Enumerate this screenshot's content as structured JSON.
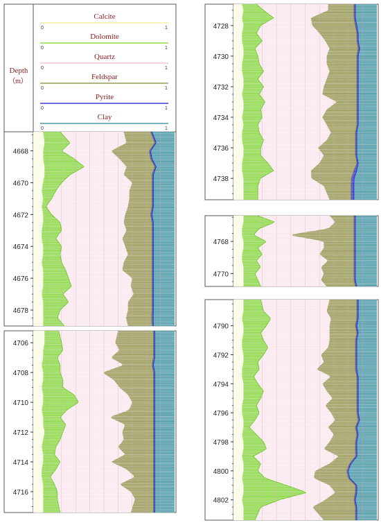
{
  "legend": {
    "depth_label": "Depth",
    "depth_unit": "（m）",
    "tracks": [
      {
        "name": "Calcite",
        "min": "0",
        "max": "1",
        "color": "#f2f2a0"
      },
      {
        "name": "Dolomite",
        "min": "0",
        "max": "1",
        "color": "#8ed84a"
      },
      {
        "name": "Quartz",
        "min": "0",
        "max": "1",
        "color": "#f2c4d2"
      },
      {
        "name": "Feldspar",
        "min": "0",
        "max": "1",
        "color": "#9a9a5a"
      },
      {
        "name": "Pyrite",
        "min": "0",
        "max": "1",
        "color": "#3a3ad8"
      },
      {
        "name": "Clay",
        "min": "0",
        "max": "1",
        "color": "#4e9aa8"
      }
    ]
  },
  "colors": {
    "label_red": "#8b1a1a",
    "calcite_bg": "#fbfbe6",
    "quartz_bg": "#fbe8ef",
    "dolomite": "#8ed84a",
    "feldspar": "#9a9a5a",
    "pyrite": "#3a3ad8",
    "clay": "#4e9aa8",
    "grid": "#d9a7b8"
  },
  "chart_data": [
    {
      "type": "area",
      "title": "",
      "ylabel": "Depth (m)",
      "ylim": [
        4666.8,
        4679.0
      ],
      "yticks": [
        4668,
        4670,
        4672,
        4674,
        4676,
        4678
      ],
      "depth": [
        4666.8,
        4667.5,
        4668.0,
        4668.5,
        4669.0,
        4669.5,
        4670.0,
        4670.5,
        4671.0,
        4671.5,
        4672.0,
        4672.5,
        4673.0,
        4673.5,
        4674.0,
        4674.5,
        4675.0,
        4675.5,
        4676.0,
        4676.5,
        4677.0,
        4677.5,
        4678.0,
        4678.5,
        4679.0
      ],
      "series": [
        {
          "name": "Calcite",
          "values": [
            0.07,
            0.08,
            0.07,
            0.07,
            0.08,
            0.08,
            0.07,
            0.06,
            0.07,
            0.06,
            0.07,
            0.07,
            0.06,
            0.06,
            0.07,
            0.07,
            0.06,
            0.07,
            0.07,
            0.07,
            0.06,
            0.07,
            0.07,
            0.07,
            0.07
          ]
        },
        {
          "name": "Dolomite",
          "values": [
            0.12,
            0.18,
            0.13,
            0.22,
            0.28,
            0.18,
            0.13,
            0.1,
            0.06,
            0.03,
            0.06,
            0.12,
            0.14,
            0.1,
            0.13,
            0.12,
            0.14,
            0.16,
            0.18,
            0.2,
            0.15,
            0.18,
            0.12,
            0.1,
            0.15
          ]
        },
        {
          "name": "Quartz",
          "values": [
            0.45,
            0.4,
            0.35,
            0.32,
            0.3,
            0.38,
            0.5,
            0.52,
            0.55,
            0.58,
            0.52,
            0.45,
            0.46,
            0.47,
            0.45,
            0.48,
            0.44,
            0.4,
            0.45,
            0.42,
            0.5,
            0.42,
            0.48,
            0.48,
            0.45
          ]
        },
        {
          "name": "Feldspar",
          "values": [
            0.19,
            0.2,
            0.27,
            0.22,
            0.2,
            0.2,
            0.14,
            0.16,
            0.16,
            0.17,
            0.18,
            0.2,
            0.18,
            0.21,
            0.19,
            0.17,
            0.2,
            0.21,
            0.14,
            0.15,
            0.13,
            0.17,
            0.17,
            0.18,
            0.17
          ]
        },
        {
          "name": "Pyrite",
          "values": [
            0.01,
            0.01,
            0.01,
            0.01,
            0.01,
            0.01,
            0.01,
            0.01,
            0.01,
            0.01,
            0.01,
            0.01,
            0.01,
            0.01,
            0.01,
            0.01,
            0.01,
            0.01,
            0.01,
            0.01,
            0.01,
            0.01,
            0.01,
            0.01,
            0.01
          ]
        },
        {
          "name": "Clay",
          "values": [
            0.16,
            0.13,
            0.17,
            0.16,
            0.13,
            0.15,
            0.15,
            0.15,
            0.15,
            0.15,
            0.16,
            0.15,
            0.15,
            0.15,
            0.15,
            0.15,
            0.15,
            0.15,
            0.15,
            0.15,
            0.15,
            0.15,
            0.15,
            0.15,
            0.15
          ]
        }
      ]
    },
    {
      "type": "area",
      "title": "",
      "ylabel": "Depth (m)",
      "ylim": [
        4705.2,
        4717.4
      ],
      "yticks": [
        4706,
        4708,
        4710,
        4712,
        4714,
        4716
      ],
      "depth": [
        4705.2,
        4706.0,
        4706.5,
        4707.0,
        4707.5,
        4708.0,
        4708.5,
        4709.0,
        4709.5,
        4710.0,
        4710.5,
        4711.0,
        4711.5,
        4712.0,
        4712.5,
        4713.0,
        4713.5,
        4714.0,
        4714.5,
        4715.0,
        4715.5,
        4716.0,
        4716.5,
        4717.4
      ],
      "series": [
        {
          "name": "Calcite",
          "values": [
            0.08,
            0.08,
            0.07,
            0.07,
            0.06,
            0.07,
            0.07,
            0.06,
            0.07,
            0.07,
            0.06,
            0.07,
            0.07,
            0.08,
            0.07,
            0.06,
            0.07,
            0.07,
            0.06,
            0.06,
            0.07,
            0.07,
            0.07,
            0.07
          ]
        },
        {
          "name": "Dolomite",
          "values": [
            0.1,
            0.12,
            0.14,
            0.1,
            0.13,
            0.12,
            0.14,
            0.15,
            0.22,
            0.25,
            0.18,
            0.12,
            0.16,
            0.13,
            0.12,
            0.1,
            0.08,
            0.12,
            0.1,
            0.06,
            0.08,
            0.1,
            0.1,
            0.12
          ]
        },
        {
          "name": "Quartz",
          "values": [
            0.42,
            0.38,
            0.4,
            0.38,
            0.45,
            0.3,
            0.36,
            0.4,
            0.38,
            0.38,
            0.44,
            0.35,
            0.42,
            0.42,
            0.45,
            0.44,
            0.5,
            0.36,
            0.5,
            0.6,
            0.46,
            0.52,
            0.55,
            0.5
          ]
        },
        {
          "name": "Feldspar",
          "values": [
            0.25,
            0.27,
            0.24,
            0.3,
            0.2,
            0.36,
            0.28,
            0.24,
            0.18,
            0.15,
            0.17,
            0.31,
            0.2,
            0.22,
            0.21,
            0.25,
            0.2,
            0.3,
            0.19,
            0.13,
            0.24,
            0.16,
            0.13,
            0.16
          ]
        },
        {
          "name": "Pyrite",
          "values": [
            0.01,
            0.01,
            0.01,
            0.01,
            0.01,
            0.01,
            0.01,
            0.01,
            0.01,
            0.01,
            0.01,
            0.01,
            0.01,
            0.01,
            0.01,
            0.01,
            0.01,
            0.01,
            0.01,
            0.01,
            0.01,
            0.01,
            0.01,
            0.01
          ]
        },
        {
          "name": "Clay",
          "values": [
            0.14,
            0.14,
            0.14,
            0.14,
            0.15,
            0.14,
            0.14,
            0.14,
            0.14,
            0.14,
            0.14,
            0.14,
            0.14,
            0.14,
            0.14,
            0.14,
            0.14,
            0.14,
            0.14,
            0.14,
            0.14,
            0.14,
            0.14,
            0.14
          ]
        }
      ]
    },
    {
      "type": "area",
      "title": "",
      "ylabel": "Depth (m)",
      "ylim": [
        4726.6,
        4739.4
      ],
      "yticks": [
        4728,
        4730,
        4732,
        4734,
        4736,
        4738
      ],
      "depth": [
        4726.6,
        4727.0,
        4727.5,
        4728.0,
        4728.5,
        4729.0,
        4729.5,
        4730.0,
        4730.5,
        4731.0,
        4731.5,
        4732.0,
        4732.5,
        4733.0,
        4733.5,
        4734.0,
        4734.5,
        4735.0,
        4735.5,
        4736.0,
        4736.5,
        4737.0,
        4737.5,
        4738.0,
        4738.5,
        4739.4
      ],
      "series": [
        {
          "name": "Calcite",
          "values": [
            0.06,
            0.07,
            0.06,
            0.07,
            0.06,
            0.06,
            0.07,
            0.07,
            0.06,
            0.06,
            0.07,
            0.07,
            0.06,
            0.07,
            0.07,
            0.06,
            0.07,
            0.06,
            0.06,
            0.07,
            0.07,
            0.06,
            0.06,
            0.07,
            0.07,
            0.07
          ]
        },
        {
          "name": "Dolomite",
          "values": [
            0.1,
            0.14,
            0.22,
            0.12,
            0.1,
            0.14,
            0.08,
            0.1,
            0.12,
            0.15,
            0.1,
            0.14,
            0.12,
            0.15,
            0.12,
            0.14,
            0.1,
            0.12,
            0.15,
            0.12,
            0.12,
            0.18,
            0.22,
            0.12,
            0.1,
            0.1
          ]
        },
        {
          "name": "Quartz",
          "values": [
            0.5,
            0.45,
            0.26,
            0.36,
            0.44,
            0.44,
            0.52,
            0.48,
            0.47,
            0.46,
            0.48,
            0.42,
            0.44,
            0.5,
            0.46,
            0.42,
            0.48,
            0.5,
            0.44,
            0.4,
            0.44,
            0.36,
            0.26,
            0.36,
            0.46,
            0.5
          ]
        },
        {
          "name": "Feldspar",
          "values": [
            0.18,
            0.18,
            0.3,
            0.3,
            0.26,
            0.22,
            0.2,
            0.21,
            0.21,
            0.19,
            0.21,
            0.23,
            0.24,
            0.14,
            0.21,
            0.24,
            0.21,
            0.17,
            0.2,
            0.26,
            0.22,
            0.26,
            0.3,
            0.28,
            0.19,
            0.15
          ]
        },
        {
          "name": "Pyrite",
          "values": [
            0.01,
            0.01,
            0.01,
            0.01,
            0.01,
            0.01,
            0.01,
            0.01,
            0.01,
            0.01,
            0.01,
            0.01,
            0.01,
            0.01,
            0.01,
            0.01,
            0.01,
            0.01,
            0.01,
            0.01,
            0.01,
            0.01,
            0.02,
            0.02,
            0.02,
            0.02
          ]
        },
        {
          "name": "Clay",
          "values": [
            0.15,
            0.15,
            0.15,
            0.14,
            0.13,
            0.13,
            0.12,
            0.13,
            0.13,
            0.13,
            0.13,
            0.13,
            0.13,
            0.13,
            0.13,
            0.13,
            0.13,
            0.14,
            0.14,
            0.14,
            0.14,
            0.13,
            0.14,
            0.16,
            0.16,
            0.16
          ]
        }
      ]
    },
    {
      "type": "area",
      "title": "",
      "ylabel": "Depth (m)",
      "ylim": [
        4766.4,
        4770.8
      ],
      "yticks": [
        4768,
        4770
      ],
      "depth": [
        4766.4,
        4766.8,
        4767.2,
        4767.6,
        4768.0,
        4768.4,
        4768.8,
        4769.2,
        4769.6,
        4770.0,
        4770.4,
        4770.8
      ],
      "series": [
        {
          "name": "Calcite",
          "values": [
            0.07,
            0.07,
            0.06,
            0.06,
            0.07,
            0.07,
            0.06,
            0.06,
            0.07,
            0.07,
            0.07,
            0.07
          ]
        },
        {
          "name": "Dolomite",
          "values": [
            0.1,
            0.22,
            0.12,
            0.08,
            0.16,
            0.1,
            0.14,
            0.1,
            0.12,
            0.08,
            0.1,
            0.12
          ]
        },
        {
          "name": "Quartz",
          "values": [
            0.5,
            0.42,
            0.48,
            0.24,
            0.4,
            0.46,
            0.4,
            0.5,
            0.42,
            0.48,
            0.44,
            0.46
          ]
        },
        {
          "name": "Feldspar",
          "values": [
            0.17,
            0.13,
            0.18,
            0.46,
            0.21,
            0.21,
            0.24,
            0.18,
            0.23,
            0.21,
            0.23,
            0.2
          ]
        },
        {
          "name": "Pyrite",
          "values": [
            0.01,
            0.01,
            0.01,
            0.01,
            0.01,
            0.01,
            0.01,
            0.01,
            0.01,
            0.01,
            0.01,
            0.01
          ]
        },
        {
          "name": "Clay",
          "values": [
            0.15,
            0.15,
            0.15,
            0.15,
            0.15,
            0.15,
            0.15,
            0.15,
            0.15,
            0.15,
            0.15,
            0.14
          ]
        }
      ]
    },
    {
      "type": "area",
      "title": "",
      "ylabel": "Depth (m)",
      "ylim": [
        4788.2,
        4803.4
      ],
      "yticks": [
        4790,
        4792,
        4794,
        4796,
        4798,
        4800,
        4802
      ],
      "depth": [
        4788.2,
        4789.0,
        4789.5,
        4790.0,
        4790.5,
        4791.0,
        4791.5,
        4792.0,
        4792.5,
        4793.0,
        4793.5,
        4794.0,
        4794.5,
        4795.0,
        4795.5,
        4796.0,
        4796.5,
        4797.0,
        4797.5,
        4798.0,
        4798.5,
        4799.0,
        4799.5,
        4800.0,
        4800.5,
        4801.0,
        4801.5,
        4802.0,
        4802.5,
        4803.4
      ],
      "series": [
        {
          "name": "Calcite",
          "values": [
            0.07,
            0.07,
            0.06,
            0.07,
            0.07,
            0.06,
            0.06,
            0.07,
            0.07,
            0.06,
            0.06,
            0.07,
            0.07,
            0.07,
            0.06,
            0.06,
            0.07,
            0.07,
            0.06,
            0.07,
            0.07,
            0.06,
            0.07,
            0.07,
            0.06,
            0.07,
            0.07,
            0.06,
            0.07,
            0.07
          ]
        },
        {
          "name": "Dolomite",
          "values": [
            0.12,
            0.14,
            0.2,
            0.16,
            0.12,
            0.15,
            0.18,
            0.14,
            0.1,
            0.12,
            0.08,
            0.1,
            0.14,
            0.12,
            0.1,
            0.12,
            0.08,
            0.04,
            0.1,
            0.14,
            0.16,
            0.08,
            0.12,
            0.1,
            0.16,
            0.3,
            0.44,
            0.26,
            0.12,
            0.08
          ]
        },
        {
          "name": "Quartz",
          "values": [
            0.48,
            0.44,
            0.42,
            0.44,
            0.48,
            0.46,
            0.42,
            0.4,
            0.46,
            0.4,
            0.54,
            0.45,
            0.44,
            0.5,
            0.48,
            0.5,
            0.56,
            0.55,
            0.54,
            0.46,
            0.4,
            0.6,
            0.48,
            0.4,
            0.34,
            0.3,
            0.2,
            0.32,
            0.36,
            0.48
          ]
        },
        {
          "name": "Feldspar",
          "values": [
            0.19,
            0.21,
            0.18,
            0.18,
            0.19,
            0.18,
            0.19,
            0.24,
            0.22,
            0.27,
            0.18,
            0.24,
            0.21,
            0.17,
            0.22,
            0.18,
            0.16,
            0.19,
            0.16,
            0.18,
            0.22,
            0.12,
            0.14,
            0.22,
            0.24,
            0.18,
            0.14,
            0.2,
            0.3,
            0.22
          ]
        },
        {
          "name": "Pyrite",
          "values": [
            0.01,
            0.01,
            0.01,
            0.01,
            0.01,
            0.01,
            0.01,
            0.01,
            0.01,
            0.01,
            0.01,
            0.01,
            0.01,
            0.01,
            0.01,
            0.01,
            0.01,
            0.01,
            0.01,
            0.01,
            0.01,
            0.01,
            0.01,
            0.01,
            0.01,
            0.01,
            0.01,
            0.01,
            0.01,
            0.01
          ]
        },
        {
          "name": "Clay",
          "values": [
            0.13,
            0.13,
            0.13,
            0.14,
            0.13,
            0.14,
            0.14,
            0.14,
            0.14,
            0.14,
            0.13,
            0.13,
            0.13,
            0.13,
            0.13,
            0.13,
            0.12,
            0.14,
            0.13,
            0.14,
            0.14,
            0.14,
            0.18,
            0.2,
            0.19,
            0.14,
            0.14,
            0.15,
            0.14,
            0.14
          ]
        }
      ]
    }
  ]
}
